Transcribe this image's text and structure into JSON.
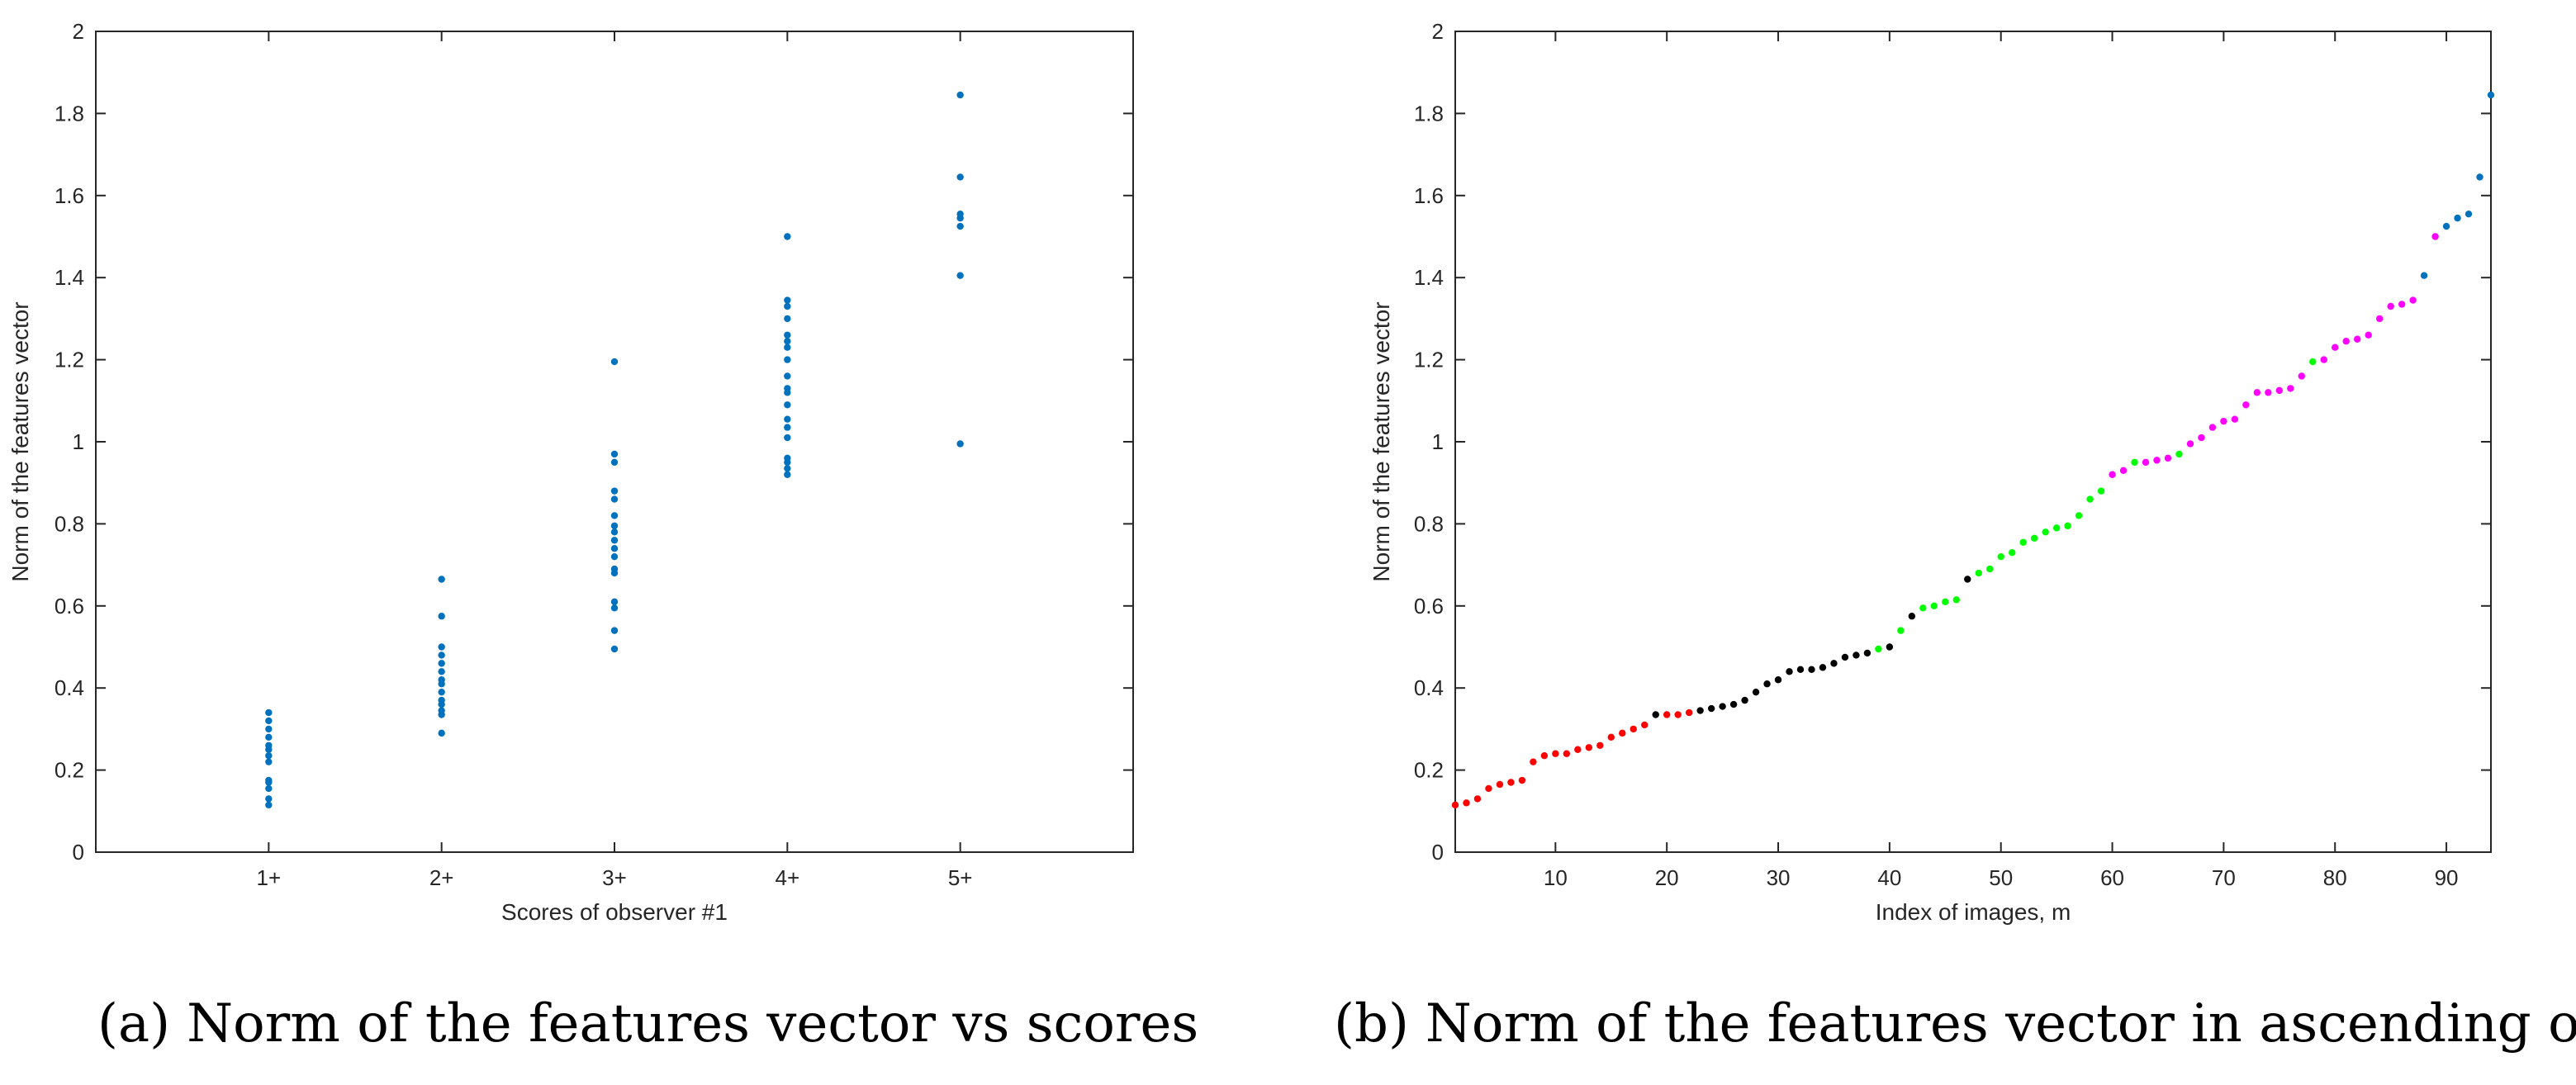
{
  "colors": {
    "blue": "#0072BD",
    "red": "#FF0000",
    "black": "#000000",
    "green": "#00FF00",
    "magenta": "#FF00FF",
    "axis": "#262626"
  },
  "captions": {
    "a_tag": "(a)",
    "a_text": "Norm of the features vector vs scores",
    "b_tag": "(b)",
    "b_text": "Norm of the features vector in ascending order"
  },
  "chart_data": [
    {
      "type": "scatter",
      "xlabel": "Scores of observer #1",
      "ylabel": "Norm of the features vector",
      "xlim": [
        0,
        6
      ],
      "ylim": [
        0,
        2
      ],
      "xticks": [
        1,
        2,
        3,
        4,
        5
      ],
      "xtick_labels": [
        "1+",
        "2+",
        "3+",
        "4+",
        "5+"
      ],
      "yticks": [
        0,
        0.2,
        0.4,
        0.6,
        0.8,
        1,
        1.2,
        1.4,
        1.6,
        1.8,
        2
      ],
      "ytick_labels": [
        "0",
        "0.2",
        "0.4",
        "0.6",
        "0.8",
        "1",
        "1.2",
        "1.4",
        "1.6",
        "1.8",
        "2"
      ],
      "grid": false,
      "series": [
        {
          "color": "blue",
          "points": [
            [
              1,
              0.115
            ],
            [
              1,
              0.13
            ],
            [
              1,
              0.155
            ],
            [
              1,
              0.17
            ],
            [
              1,
              0.175
            ],
            [
              1,
              0.22
            ],
            [
              1,
              0.235
            ],
            [
              1,
              0.25
            ],
            [
              1,
              0.26
            ],
            [
              1,
              0.28
            ],
            [
              1,
              0.3
            ],
            [
              1,
              0.32
            ],
            [
              1,
              0.34
            ],
            [
              2,
              0.29
            ],
            [
              2,
              0.335
            ],
            [
              2,
              0.345
            ],
            [
              2,
              0.36
            ],
            [
              2,
              0.37
            ],
            [
              2,
              0.39
            ],
            [
              2,
              0.41
            ],
            [
              2,
              0.42
            ],
            [
              2,
              0.44
            ],
            [
              2,
              0.46
            ],
            [
              2,
              0.48
            ],
            [
              2,
              0.5
            ],
            [
              2,
              0.575
            ],
            [
              2,
              0.665
            ],
            [
              3,
              0.495
            ],
            [
              3,
              0.54
            ],
            [
              3,
              0.595
            ],
            [
              3,
              0.61
            ],
            [
              3,
              0.68
            ],
            [
              3,
              0.69
            ],
            [
              3,
              0.72
            ],
            [
              3,
              0.74
            ],
            [
              3,
              0.76
            ],
            [
              3,
              0.78
            ],
            [
              3,
              0.795
            ],
            [
              3,
              0.82
            ],
            [
              3,
              0.86
            ],
            [
              3,
              0.88
            ],
            [
              3,
              0.95
            ],
            [
              3,
              0.97
            ],
            [
              3,
              1.195
            ],
            [
              4,
              0.92
            ],
            [
              4,
              0.935
            ],
            [
              4,
              0.95
            ],
            [
              4,
              0.96
            ],
            [
              4,
              1.01
            ],
            [
              4,
              1.035
            ],
            [
              4,
              1.055
            ],
            [
              4,
              1.09
            ],
            [
              4,
              1.12
            ],
            [
              4,
              1.13
            ],
            [
              4,
              1.16
            ],
            [
              4,
              1.2
            ],
            [
              4,
              1.23
            ],
            [
              4,
              1.245
            ],
            [
              4,
              1.26
            ],
            [
              4,
              1.3
            ],
            [
              4,
              1.33
            ],
            [
              4,
              1.345
            ],
            [
              4,
              1.5
            ],
            [
              5,
              0.995
            ],
            [
              5,
              1.405
            ],
            [
              5,
              1.525
            ],
            [
              5,
              1.545
            ],
            [
              5,
              1.555
            ],
            [
              5,
              1.645
            ],
            [
              5,
              1.845
            ]
          ]
        }
      ]
    },
    {
      "type": "scatter",
      "xlabel": "Index of images, m",
      "ylabel": "Norm of the features vector",
      "xlim": [
        1,
        94
      ],
      "ylim": [
        0,
        2
      ],
      "xticks": [
        10,
        20,
        30,
        40,
        50,
        60,
        70,
        80,
        90
      ],
      "xtick_labels": [
        "10",
        "20",
        "30",
        "40",
        "50",
        "60",
        "70",
        "80",
        "90"
      ],
      "yticks": [
        0,
        0.2,
        0.4,
        0.6,
        0.8,
        1,
        1.2,
        1.4,
        1.6,
        1.8,
        2
      ],
      "ytick_labels": [
        "0",
        "0.2",
        "0.4",
        "0.6",
        "0.8",
        "1",
        "1.2",
        "1.4",
        "1.6",
        "1.8",
        "2"
      ],
      "grid": false,
      "x_start": 1,
      "values": [
        0.115,
        0.12,
        0.13,
        0.155,
        0.165,
        0.17,
        0.175,
        0.22,
        0.235,
        0.24,
        0.24,
        0.25,
        0.255,
        0.26,
        0.28,
        0.29,
        0.3,
        0.31,
        0.335,
        0.335,
        0.335,
        0.34,
        0.345,
        0.35,
        0.355,
        0.36,
        0.37,
        0.39,
        0.41,
        0.42,
        0.44,
        0.445,
        0.445,
        0.45,
        0.46,
        0.475,
        0.48,
        0.485,
        0.495,
        0.5,
        0.54,
        0.575,
        0.595,
        0.6,
        0.61,
        0.615,
        0.665,
        0.68,
        0.69,
        0.72,
        0.73,
        0.755,
        0.765,
        0.78,
        0.79,
        0.795,
        0.82,
        0.86,
        0.88,
        0.92,
        0.93,
        0.95,
        0.95,
        0.955,
        0.96,
        0.97,
        0.995,
        1.01,
        1.035,
        1.05,
        1.055,
        1.09,
        1.12,
        1.12,
        1.125,
        1.13,
        1.16,
        1.195,
        1.2,
        1.23,
        1.245,
        1.25,
        1.26,
        1.3,
        1.33,
        1.335,
        1.345,
        1.405,
        1.5,
        1.525,
        1.545,
        1.555,
        1.645,
        1.845
      ],
      "point_colors": [
        "red",
        "red",
        "red",
        "red",
        "red",
        "red",
        "red",
        "red",
        "red",
        "red",
        "red",
        "red",
        "red",
        "red",
        "red",
        "red",
        "red",
        "red",
        "black",
        "red",
        "red",
        "red",
        "black",
        "black",
        "black",
        "black",
        "black",
        "black",
        "black",
        "black",
        "black",
        "black",
        "black",
        "black",
        "black",
        "black",
        "black",
        "black",
        "green",
        "black",
        "green",
        "black",
        "green",
        "green",
        "green",
        "green",
        "black",
        "green",
        "green",
        "green",
        "green",
        "green",
        "green",
        "green",
        "green",
        "green",
        "green",
        "green",
        "green",
        "magenta",
        "magenta",
        "green",
        "magenta",
        "magenta",
        "magenta",
        "green",
        "magenta",
        "magenta",
        "magenta",
        "magenta",
        "magenta",
        "magenta",
        "magenta",
        "magenta",
        "magenta",
        "magenta",
        "magenta",
        "green",
        "magenta",
        "magenta",
        "magenta",
        "magenta",
        "magenta",
        "magenta",
        "magenta",
        "magenta",
        "magenta",
        "blue",
        "magenta",
        "blue",
        "blue",
        "blue",
        "blue",
        "blue"
      ]
    }
  ]
}
